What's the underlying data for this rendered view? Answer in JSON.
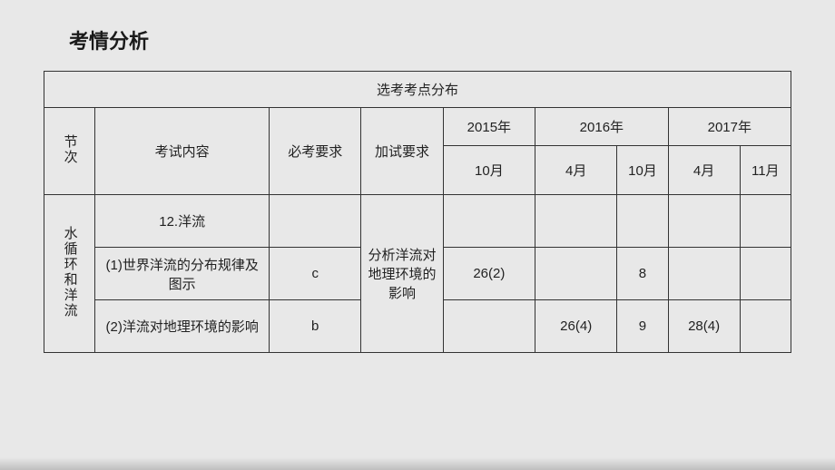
{
  "title": "考情分析",
  "table": {
    "caption": "选考考点分布",
    "headers": {
      "section": "节次",
      "exam_content": "考试内容",
      "must_req": "必考要求",
      "extra_req": "加试要求",
      "year2015": "2015年",
      "year2016": "2016年",
      "year2017": "2017年",
      "oct": "10月",
      "apr": "4月",
      "oct_short": "10月",
      "apr2": "4月",
      "nov": "11月"
    },
    "section_label": "水循环和洋流",
    "extra_req_text": "分析洋流对地理环境的影响",
    "rows": [
      {
        "content": "12.洋流",
        "must": "",
        "y2015_oct": "",
        "y2016_apr": "",
        "y2016_oct": "",
        "y2017_apr": "",
        "y2017_nov": ""
      },
      {
        "content": "(1)世界洋流的分布规律及图示",
        "must": "c",
        "y2015_oct": "26(2)",
        "y2016_apr": "",
        "y2016_oct": "8",
        "y2017_apr": "",
        "y2017_nov": ""
      },
      {
        "content": "(2)洋流对地理环境的影响",
        "must": "b",
        "y2015_oct": "",
        "y2016_apr": "26(4)",
        "y2016_oct": "9",
        "y2017_apr": "28(4)",
        "y2017_nov": ""
      }
    ]
  },
  "colors": {
    "page_bg": "#e8e8e8",
    "border": "#333333",
    "text": "#222222",
    "title": "#1a1a1a"
  }
}
